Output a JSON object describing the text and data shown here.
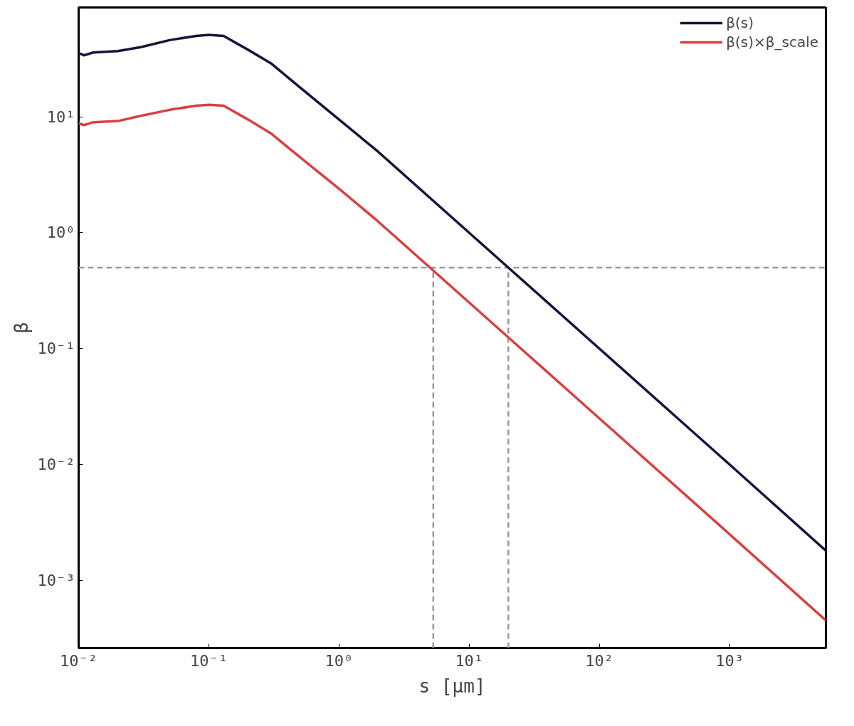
{
  "chart_data": {
    "type": "line",
    "xlabel": "s [μm]",
    "ylabel": "β",
    "log": "xy",
    "grid": false,
    "legend": "top right",
    "x": [
      0.01,
      0.011,
      0.013,
      0.02,
      0.03,
      0.05,
      0.08,
      0.1,
      0.13,
      0.2,
      0.3,
      0.5,
      1,
      2,
      5,
      10,
      20,
      100,
      1000,
      5500
    ],
    "series": [
      {
        "name": "β(s)",
        "color": "#16143c",
        "values": [
          35.5,
          34,
          36,
          37,
          40,
          46,
          50,
          51,
          50,
          38,
          29,
          18,
          9.5,
          5,
          2,
          1,
          0.5,
          0.1,
          0.01,
          0.0018
        ]
      },
      {
        "name": "β(s)×β_scale",
        "color": "#d94040",
        "values": [
          8.8,
          8.5,
          9,
          9.2,
          10.2,
          11.5,
          12.5,
          12.7,
          12.5,
          9.5,
          7.2,
          4.5,
          2.4,
          1.25,
          0.5,
          0.25,
          0.125,
          0.025,
          0.0025,
          0.00045
        ]
      }
    ],
    "ref_lines": [
      {
        "axis": "y",
        "value": 0.5,
        "color": "#999999",
        "line_style": "dashed"
      },
      {
        "axis": "x",
        "value": 5.3,
        "color": "#999999",
        "line_style": "dashed"
      },
      {
        "axis": "x",
        "value": 20,
        "color": "#999999",
        "line_style": "dashed"
      }
    ],
    "xlim": [
      0.01,
      5500
    ],
    "ylim": [
      0.00026,
      88
    ],
    "xticks": [
      {
        "value": 0.01,
        "label": "10⁻²"
      },
      {
        "value": 0.1,
        "label": "10⁻¹"
      },
      {
        "value": 1,
        "label": "10⁰"
      },
      {
        "value": 10,
        "label": "10¹"
      },
      {
        "value": 100,
        "label": "10²"
      },
      {
        "value": 1000,
        "label": "10³"
      }
    ],
    "yticks": [
      {
        "value": 0.001,
        "label": "10⁻³"
      },
      {
        "value": 0.01,
        "label": "10⁻²"
      },
      {
        "value": 0.1,
        "label": "10⁻¹"
      },
      {
        "value": 1,
        "label": "10⁰"
      },
      {
        "value": 10,
        "label": "10¹"
      }
    ]
  }
}
